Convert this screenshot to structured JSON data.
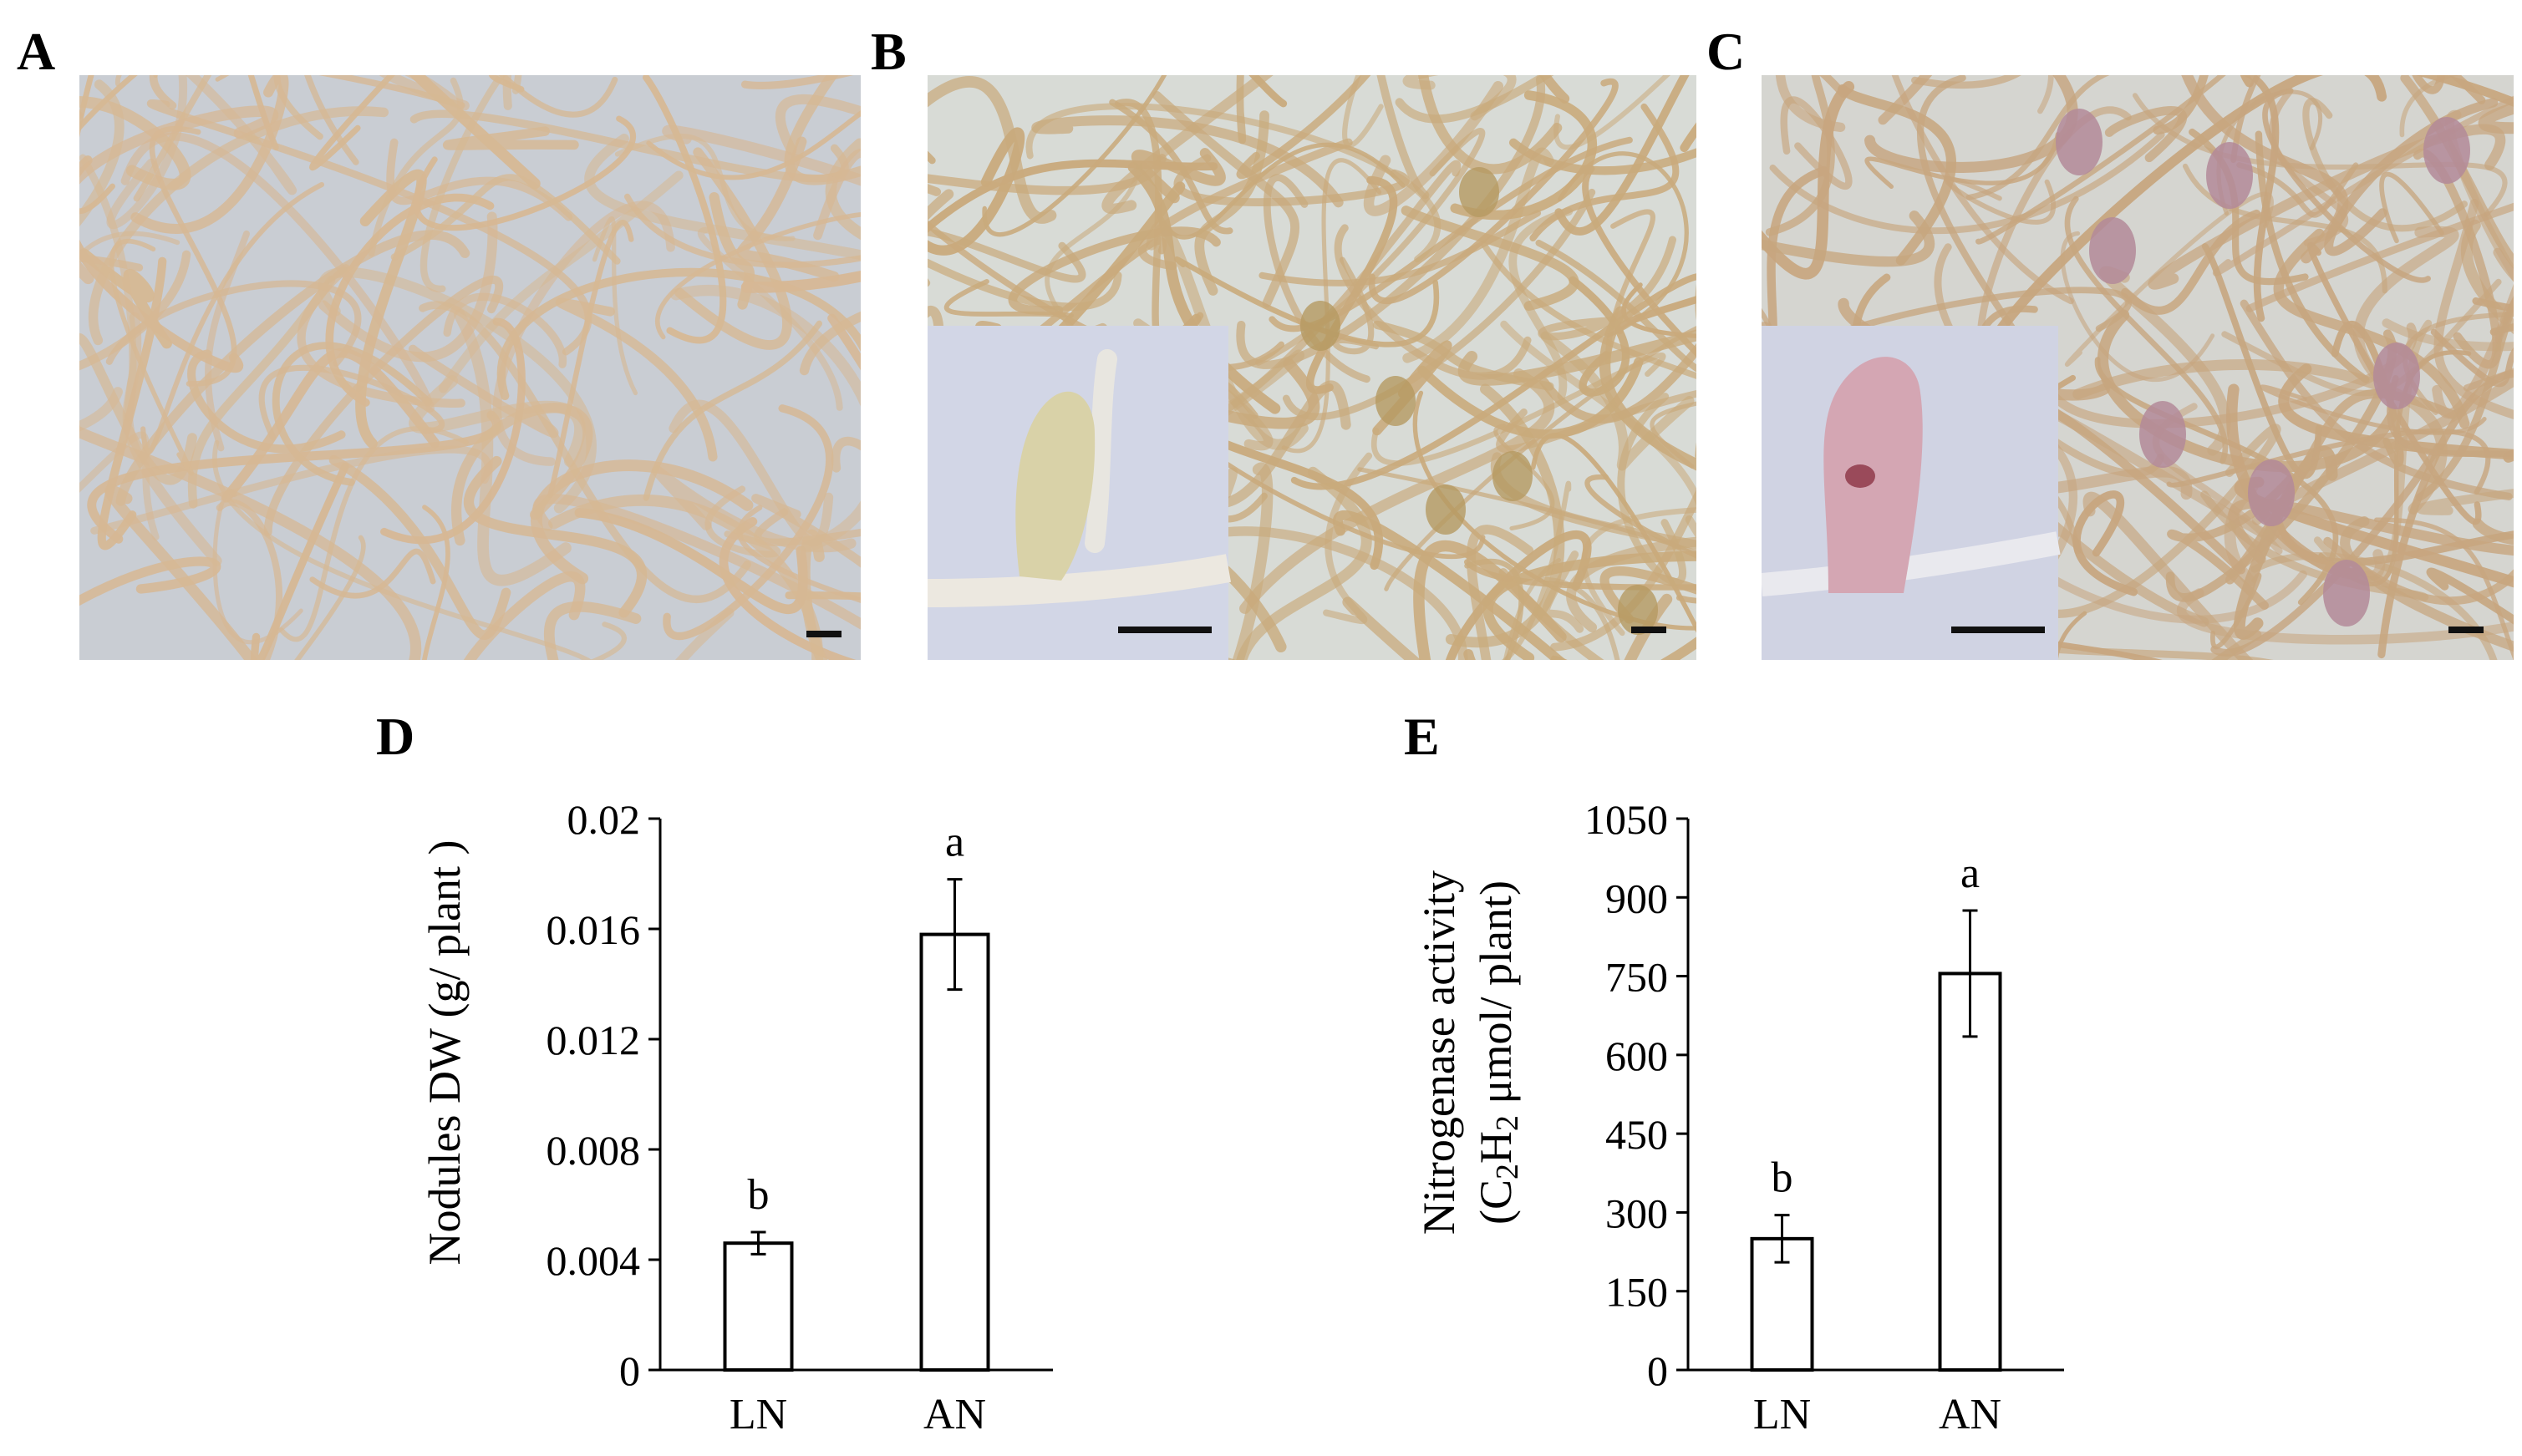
{
  "panels": {
    "A": "A",
    "B": "B",
    "C": "C",
    "D": "D",
    "E": "E"
  },
  "photos": {
    "A": {
      "subject": "roots-without-nodules-icon",
      "background": "#c9cdd3",
      "root_color": "#d6b894"
    },
    "B": {
      "subject": "roots-with-white-nodules-icon",
      "background": "#d8dbd6",
      "root_color": "#c9aa7c",
      "inset_background": "#d2d6e6"
    },
    "C": {
      "subject": "roots-with-pink-nodules-icon",
      "background": "#d5d5d0",
      "root_color": "#c7a67f",
      "nodule_color": "#b38a99",
      "inset_background": "#d0d3e3"
    }
  },
  "chart_data": [
    {
      "type": "bar",
      "panel": "D",
      "categories": [
        "LN",
        "AN"
      ],
      "values": [
        0.0046,
        0.0158
      ],
      "errors": [
        0.0004,
        0.002
      ],
      "significance": [
        "b",
        "a"
      ],
      "title": "",
      "xlabel": "",
      "ylabel": "Nodules DW (g/ plant )",
      "ylim": [
        0,
        0.02
      ],
      "yticks": [
        0,
        0.004,
        0.008,
        0.012,
        0.016,
        0.02
      ],
      "ytick_labels": [
        "0",
        "0.004",
        "0.008",
        "0.012",
        "0.016",
        "0.02"
      ],
      "grid": false,
      "bar_fill": "#ffffff",
      "bar_stroke": "#000000"
    },
    {
      "type": "bar",
      "panel": "E",
      "categories": [
        "LN",
        "AN"
      ],
      "values": [
        250,
        755
      ],
      "errors": [
        45,
        120
      ],
      "significance": [
        "b",
        "a"
      ],
      "title": "",
      "xlabel": "",
      "ylabel_line1": "Nitrogenase activity",
      "ylabel_line2": "(C2H2 μmol/ plant)",
      "ylim": [
        0,
        1050
      ],
      "yticks": [
        0,
        150,
        300,
        450,
        600,
        750,
        900,
        1050
      ],
      "ytick_labels": [
        "0",
        "150",
        "300",
        "450",
        "600",
        "750",
        "900",
        "1050"
      ],
      "grid": false,
      "bar_fill": "#ffffff",
      "bar_stroke": "#000000"
    }
  ]
}
